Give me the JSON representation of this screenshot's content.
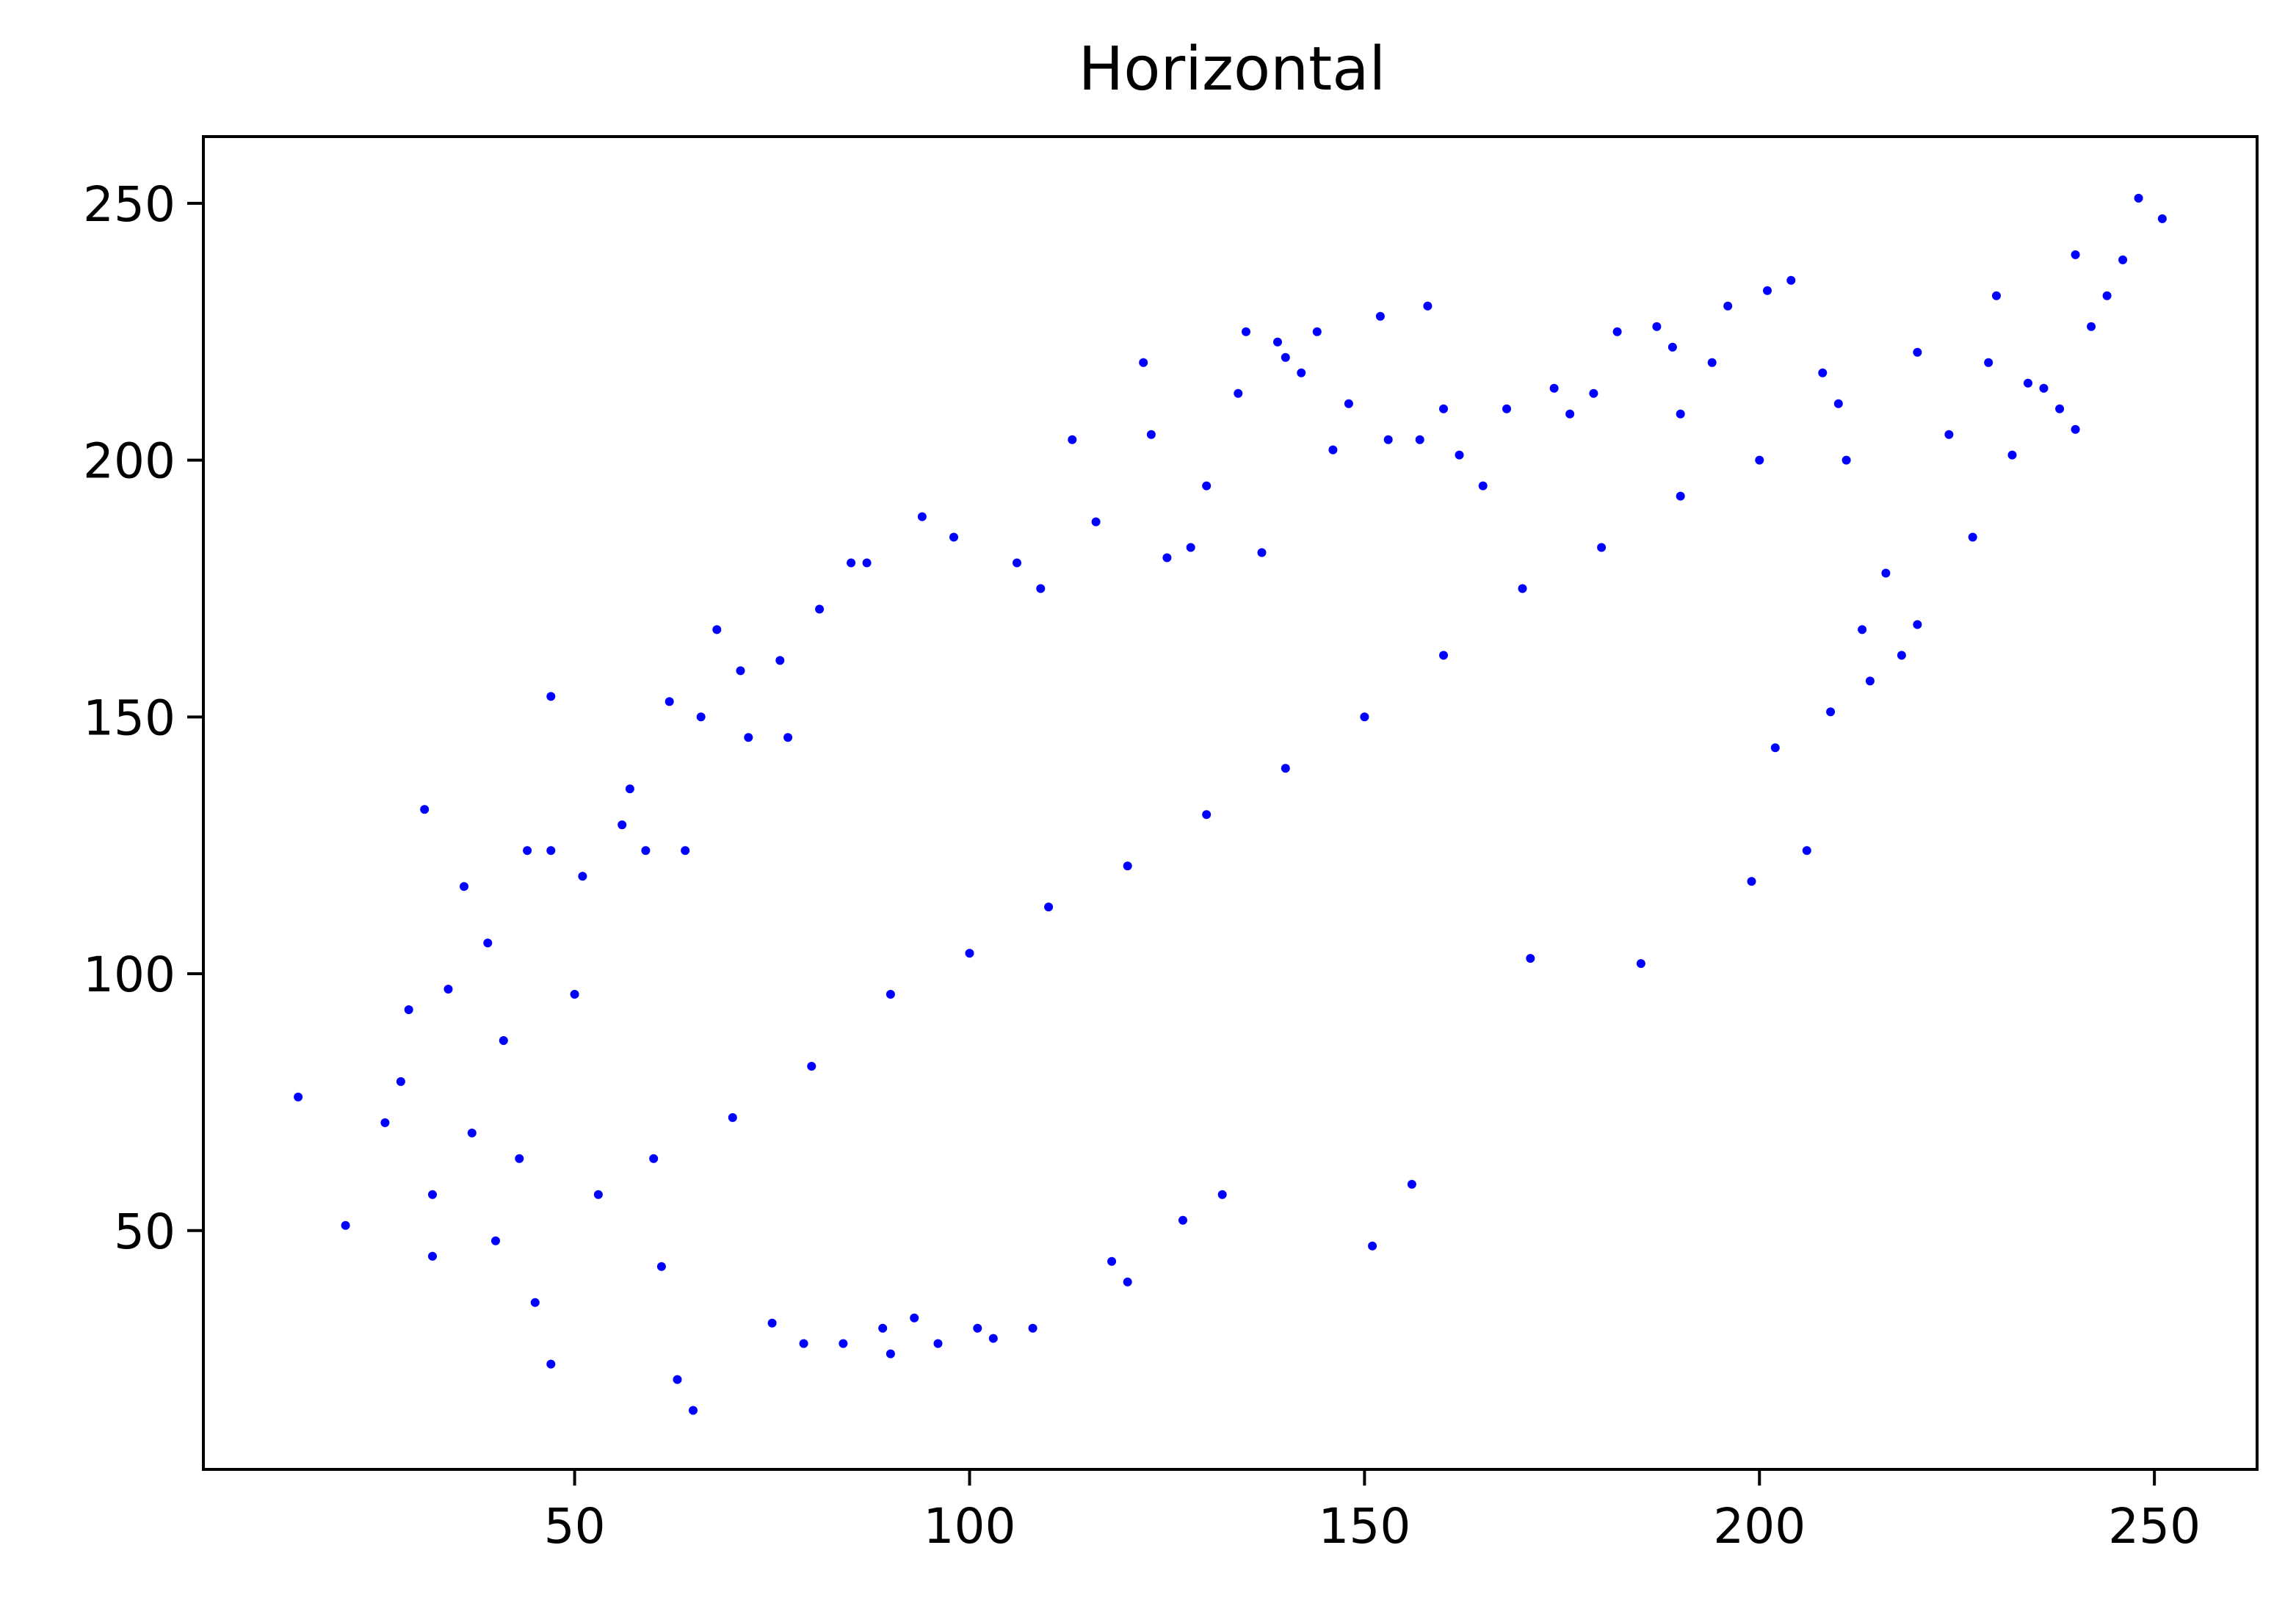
{
  "chart_data": {
    "type": "scatter",
    "title": "Horizontal",
    "xlabel": "",
    "ylabel": "",
    "xlim": [
      3,
      263
    ],
    "ylim": [
      3.5,
      263
    ],
    "xticks": [
      50,
      100,
      150,
      200,
      250
    ],
    "yticks": [
      50,
      100,
      150,
      200,
      250
    ],
    "grid": false,
    "legend": "none",
    "marker_color": "#0000ff",
    "series": [
      {
        "points": [
          [
            15,
            76
          ],
          [
            21,
            51
          ],
          [
            26,
            71
          ],
          [
            28,
            79
          ],
          [
            29,
            93
          ],
          [
            31,
            132
          ],
          [
            32,
            57
          ],
          [
            32,
            45
          ],
          [
            34,
            97
          ],
          [
            36,
            117
          ],
          [
            37,
            69
          ],
          [
            39,
            106
          ],
          [
            40,
            48
          ],
          [
            41,
            87
          ],
          [
            43,
            64
          ],
          [
            44,
            124
          ],
          [
            45,
            36
          ],
          [
            47,
            154
          ],
          [
            47,
            124
          ],
          [
            47,
            24
          ],
          [
            50,
            96
          ],
          [
            51,
            119
          ],
          [
            53,
            57
          ],
          [
            56,
            129
          ],
          [
            57,
            136
          ],
          [
            59,
            124
          ],
          [
            61,
            43
          ],
          [
            62,
            153
          ],
          [
            63,
            21
          ],
          [
            64,
            124
          ],
          [
            65,
            15
          ],
          [
            66,
            150
          ],
          [
            68,
            167
          ],
          [
            71,
            159
          ],
          [
            72,
            146
          ],
          [
            75,
            32
          ],
          [
            76,
            161
          ],
          [
            77,
            146
          ],
          [
            79,
            28
          ],
          [
            81,
            171
          ],
          [
            84,
            28
          ],
          [
            85,
            180
          ],
          [
            87,
            180
          ],
          [
            89,
            31
          ],
          [
            90,
            26
          ],
          [
            93,
            33
          ],
          [
            94,
            189
          ],
          [
            96,
            28
          ],
          [
            98,
            185
          ],
          [
            101,
            31
          ],
          [
            103,
            29
          ],
          [
            106,
            180
          ],
          [
            108,
            31
          ],
          [
            109,
            175
          ],
          [
            113,
            204
          ],
          [
            116,
            188
          ],
          [
            118,
            44
          ],
          [
            120,
            40
          ],
          [
            122,
            219
          ],
          [
            123,
            205
          ],
          [
            125,
            181
          ],
          [
            127,
            52
          ],
          [
            128,
            183
          ],
          [
            130,
            195
          ],
          [
            132,
            57
          ],
          [
            134,
            213
          ],
          [
            135,
            225
          ],
          [
            137,
            182
          ],
          [
            139,
            223
          ],
          [
            140,
            220
          ],
          [
            142,
            217
          ],
          [
            144,
            225
          ],
          [
            146,
            202
          ],
          [
            148,
            211
          ],
          [
            151,
            47
          ],
          [
            152,
            228
          ],
          [
            153,
            204
          ],
          [
            156,
            59
          ],
          [
            157,
            204
          ],
          [
            158,
            230
          ],
          [
            160,
            210
          ],
          [
            162,
            201
          ],
          [
            165,
            195
          ],
          [
            168,
            210
          ],
          [
            171,
            103
          ],
          [
            174,
            214
          ],
          [
            176,
            209
          ],
          [
            179,
            213
          ],
          [
            182,
            225
          ],
          [
            185,
            102
          ],
          [
            187,
            226
          ],
          [
            189,
            222
          ],
          [
            190,
            209
          ],
          [
            194,
            219
          ],
          [
            196,
            230
          ],
          [
            199,
            118
          ],
          [
            201,
            233
          ],
          [
            202,
            144
          ],
          [
            204,
            235
          ],
          [
            206,
            124
          ],
          [
            208,
            217
          ],
          [
            209,
            151
          ],
          [
            211,
            200
          ],
          [
            213,
            167
          ],
          [
            214,
            157
          ],
          [
            216,
            178
          ],
          [
            218,
            162
          ],
          [
            220,
            168
          ],
          [
            224,
            205
          ],
          [
            227,
            185
          ],
          [
            229,
            219
          ],
          [
            232,
            201
          ],
          [
            234,
            215
          ],
          [
            236,
            214
          ],
          [
            238,
            210
          ],
          [
            240,
            206
          ],
          [
            242,
            226
          ],
          [
            244,
            232
          ],
          [
            246,
            239
          ],
          [
            248,
            251
          ],
          [
            251,
            247
          ],
          [
            60,
            64
          ],
          [
            70,
            72
          ],
          [
            80,
            82
          ],
          [
            90,
            96
          ],
          [
            100,
            104
          ],
          [
            110,
            113
          ],
          [
            120,
            121
          ],
          [
            130,
            131
          ],
          [
            140,
            140
          ],
          [
            150,
            150
          ],
          [
            160,
            162
          ],
          [
            170,
            175
          ],
          [
            180,
            183
          ],
          [
            190,
            193
          ],
          [
            200,
            200
          ],
          [
            210,
            211
          ],
          [
            220,
            221
          ],
          [
            230,
            232
          ],
          [
            240,
            240
          ]
        ]
      }
    ]
  }
}
